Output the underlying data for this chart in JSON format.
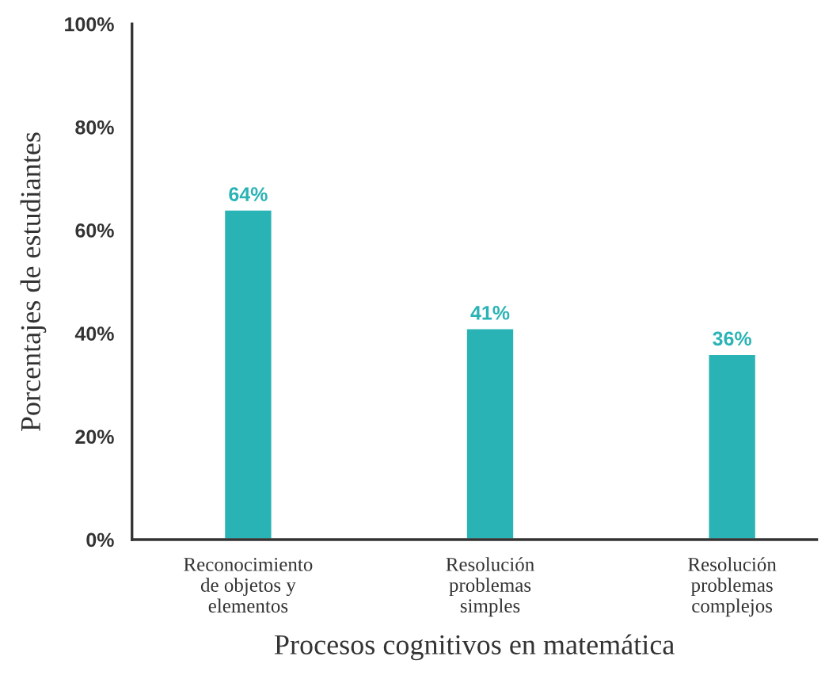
{
  "chart_data": {
    "type": "bar",
    "xlabel": "Procesos cognitivos en matemática",
    "ylabel": "Porcentajes de estudiantes",
    "categories": [
      "Reconocimiento\nde objetos y\nelementos",
      "Resolución\nproblemas\nsimples",
      "Resolución\nproblemas\ncomplejos"
    ],
    "values": [
      64,
      41,
      36
    ],
    "color": "#2ab3b5",
    "value_labels": [
      "64%",
      "41%",
      "36%"
    ],
    "ylim": [
      0,
      100
    ],
    "yticks": [
      {
        "value": 0,
        "label": "0%"
      },
      {
        "value": 20,
        "label": "20%"
      },
      {
        "value": 40,
        "label": "40%"
      },
      {
        "value": 60,
        "label": "60%"
      },
      {
        "value": 80,
        "label": "80%"
      },
      {
        "value": 100,
        "label": "100%"
      }
    ],
    "grid": false,
    "legend": false
  }
}
